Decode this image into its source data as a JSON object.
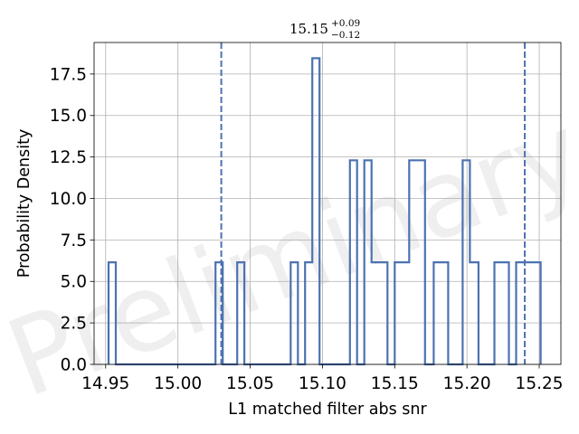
{
  "chart_data": {
    "type": "histogram",
    "title": {
      "base": "15.15",
      "upper": "+0.09",
      "lower": "−0.12"
    },
    "xlabel": "L1 matched filter abs snr",
    "ylabel": "Probability Density",
    "xlim": [
      14.942,
      15.265
    ],
    "ylim": [
      0.0,
      19.4
    ],
    "xticks": [
      14.95,
      15.0,
      15.05,
      15.1,
      15.15,
      15.2,
      15.25
    ],
    "xtick_labels": [
      "14.95",
      "15.00",
      "15.05",
      "15.10",
      "15.15",
      "15.20",
      "15.25"
    ],
    "yticks": [
      0.0,
      2.5,
      5.0,
      7.5,
      10.0,
      12.5,
      15.0,
      17.5
    ],
    "ytick_labels": [
      "0.0",
      "2.5",
      "5.0",
      "7.5",
      "10.0",
      "12.5",
      "15.0",
      "17.5"
    ],
    "grid": true,
    "bin_edges": [
      14.952,
      14.957,
      15.026,
      15.031,
      15.041,
      15.046,
      15.078,
      15.083,
      15.088,
      15.093,
      15.098,
      15.103,
      15.119,
      15.124,
      15.129,
      15.134,
      15.145,
      15.15,
      15.16,
      15.171,
      15.177,
      15.187,
      15.197,
      15.202,
      15.208,
      15.219,
      15.229,
      15.234,
      15.241,
      15.245,
      15.251
    ],
    "density": [
      6.15,
      0,
      6.15,
      0,
      6.15,
      0,
      6.15,
      0,
      6.15,
      18.45,
      0,
      0,
      12.3,
      0,
      12.3,
      6.15,
      0,
      6.15,
      12.3,
      0,
      6.15,
      0,
      12.3,
      6.15,
      0,
      6.15,
      0,
      6.15,
      6.15,
      6.15
    ],
    "quantile_lines": [
      15.03,
      15.24
    ],
    "series_color": "#4c72b0",
    "watermark": "Preliminary"
  }
}
